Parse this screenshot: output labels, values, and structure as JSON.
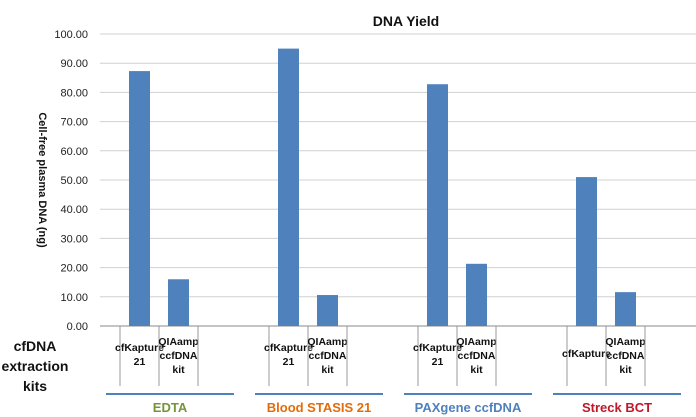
{
  "chart_data": {
    "type": "bar",
    "title": "DNA Yield",
    "ylabel": "Cell-free plasma DNA (ng)",
    "ylim": [
      0,
      100
    ],
    "ytick_step": 10,
    "yticks": [
      "0.00",
      "10.00",
      "20.00",
      "30.00",
      "40.00",
      "50.00",
      "60.00",
      "70.00",
      "80.00",
      "90.00",
      "100.00"
    ],
    "grid": true,
    "bar_color": "#4f81bd",
    "groups": [
      {
        "name": "EDTA",
        "color": "#77933c",
        "bars": [
          {
            "category": [
              "cfKapture",
              "21"
            ],
            "value": 87.3
          },
          {
            "category": [
              "QIAamp",
              "ccfDNA",
              "kit"
            ],
            "value": 16.0
          }
        ]
      },
      {
        "name": "Blood STASIS 21",
        "color": "#e36c09",
        "bars": [
          {
            "category": [
              "cfKapture",
              "21"
            ],
            "value": 95.0
          },
          {
            "category": [
              "QIAamp",
              "ccfDNA",
              "kit"
            ],
            "value": 10.6
          }
        ]
      },
      {
        "name": "PAXgene ccfDNA",
        "color": "#4f81bd",
        "bars": [
          {
            "category": [
              "cfKapture",
              "21"
            ],
            "value": 82.8
          },
          {
            "category": [
              "QIAamp",
              "ccfDNA",
              "kit"
            ],
            "value": 21.3
          }
        ]
      },
      {
        "name": "Streck BCT",
        "color": "#c0182a",
        "bars": [
          {
            "category": [
              "cfKapture"
            ],
            "value": 51.0
          },
          {
            "category": [
              "QIAamp",
              "ccfDNA",
              "kit"
            ],
            "value": 11.6
          }
        ]
      }
    ]
  },
  "side_label": [
    "cfDNA",
    "extraction",
    "kits"
  ]
}
